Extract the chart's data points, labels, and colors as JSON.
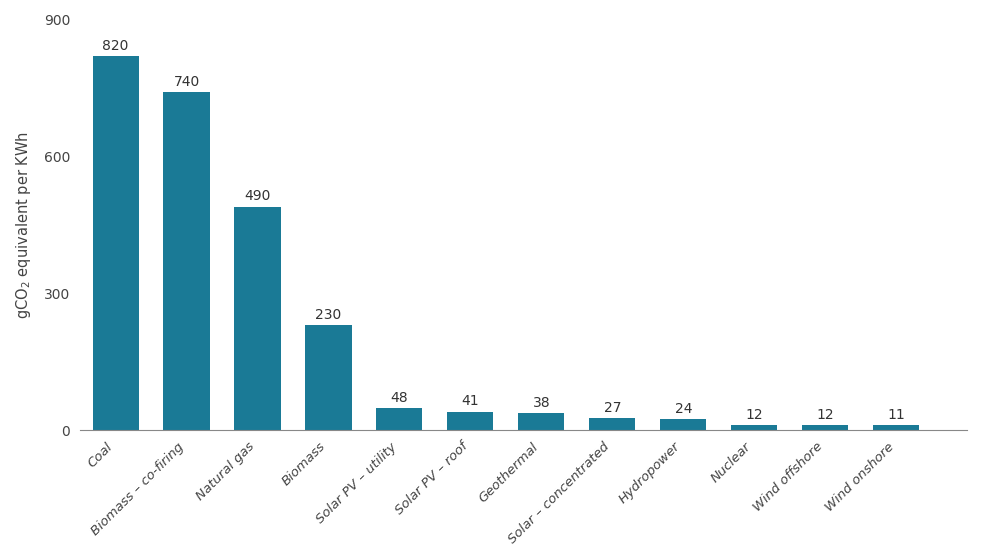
{
  "categories": [
    "Coal",
    "Biomass – co-firing",
    "Natural gas",
    "Biomass",
    "Solar PV – utility",
    "Solar PV – roof",
    "Geothermal",
    "Solar – concentrated",
    "Hydropower",
    "Nuclear",
    "Wind offshore",
    "Wind onshore"
  ],
  "values": [
    820,
    740,
    490,
    230,
    48,
    41,
    38,
    27,
    24,
    12,
    12,
    11
  ],
  "bar_color": "#1a7a96",
  "ylim": [
    0,
    900
  ],
  "yticks": [
    0,
    300,
    600,
    900
  ],
  "background_color": "#ffffff",
  "label_fontsize": 9.5,
  "tick_fontsize": 10,
  "ylabel_fontsize": 10.5,
  "value_label_fontsize": 10
}
